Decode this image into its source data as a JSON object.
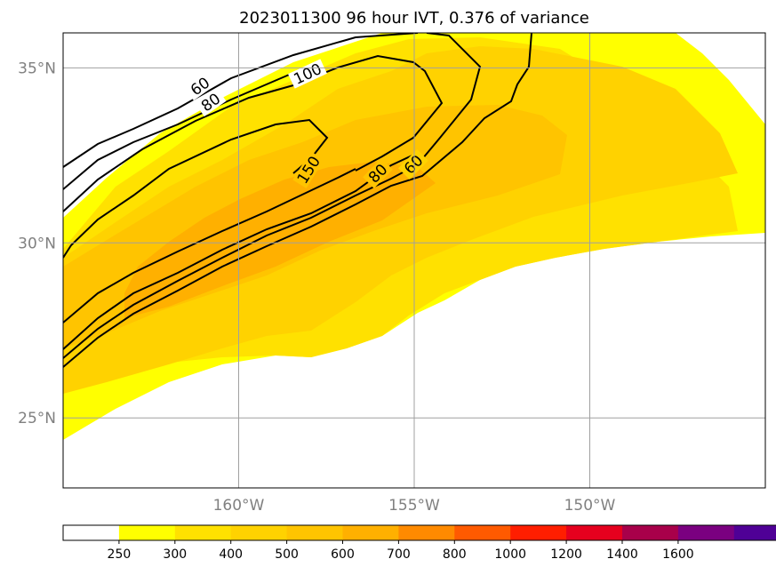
{
  "chart_data": {
    "type": "contour-map",
    "title": "2023011300 96 hour IVT, 0.376 of variance",
    "lon_ticks": [
      {
        "value": -160,
        "label": "160°W"
      },
      {
        "value": -155,
        "label": "155°W"
      },
      {
        "value": -150,
        "label": "150°W"
      }
    ],
    "lat_ticks": [
      {
        "value": 25,
        "label": "25°N"
      },
      {
        "value": 30,
        "label": "30°N"
      },
      {
        "value": 35,
        "label": "35°N"
      }
    ],
    "lon_range": [
      -165,
      -145
    ],
    "lat_range": [
      23,
      36
    ],
    "grid": true,
    "colorbar": {
      "levels": [
        "250",
        "300",
        "400",
        "500",
        "600",
        "700",
        "800",
        "1000",
        "1200",
        "1400",
        "1600"
      ],
      "colors": [
        "#ffffff",
        "#ffff00",
        "#ffe100",
        "#ffd200",
        "#ffc400",
        "#ffb000",
        "#ff8a00",
        "#ff5a00",
        "#ff1e00",
        "#e6001e",
        "#a8004a",
        "#7a0080",
        "#4f0096"
      ],
      "extend": "max"
    },
    "filled_regions": [
      {
        "level": "250-300",
        "color": "#ffff00"
      },
      {
        "level": "300-400",
        "color": "#ffe100"
      },
      {
        "level": "400-500",
        "color": "#ffd200"
      },
      {
        "level": "500-600",
        "color": "#ffc400"
      },
      {
        "level": "600-700",
        "color": "#ffb000"
      }
    ],
    "contour_labels": [
      {
        "text": "60"
      },
      {
        "text": "80"
      },
      {
        "text": "100"
      },
      {
        "text": "150"
      },
      {
        "text": "80"
      },
      {
        "text": "60"
      }
    ]
  }
}
